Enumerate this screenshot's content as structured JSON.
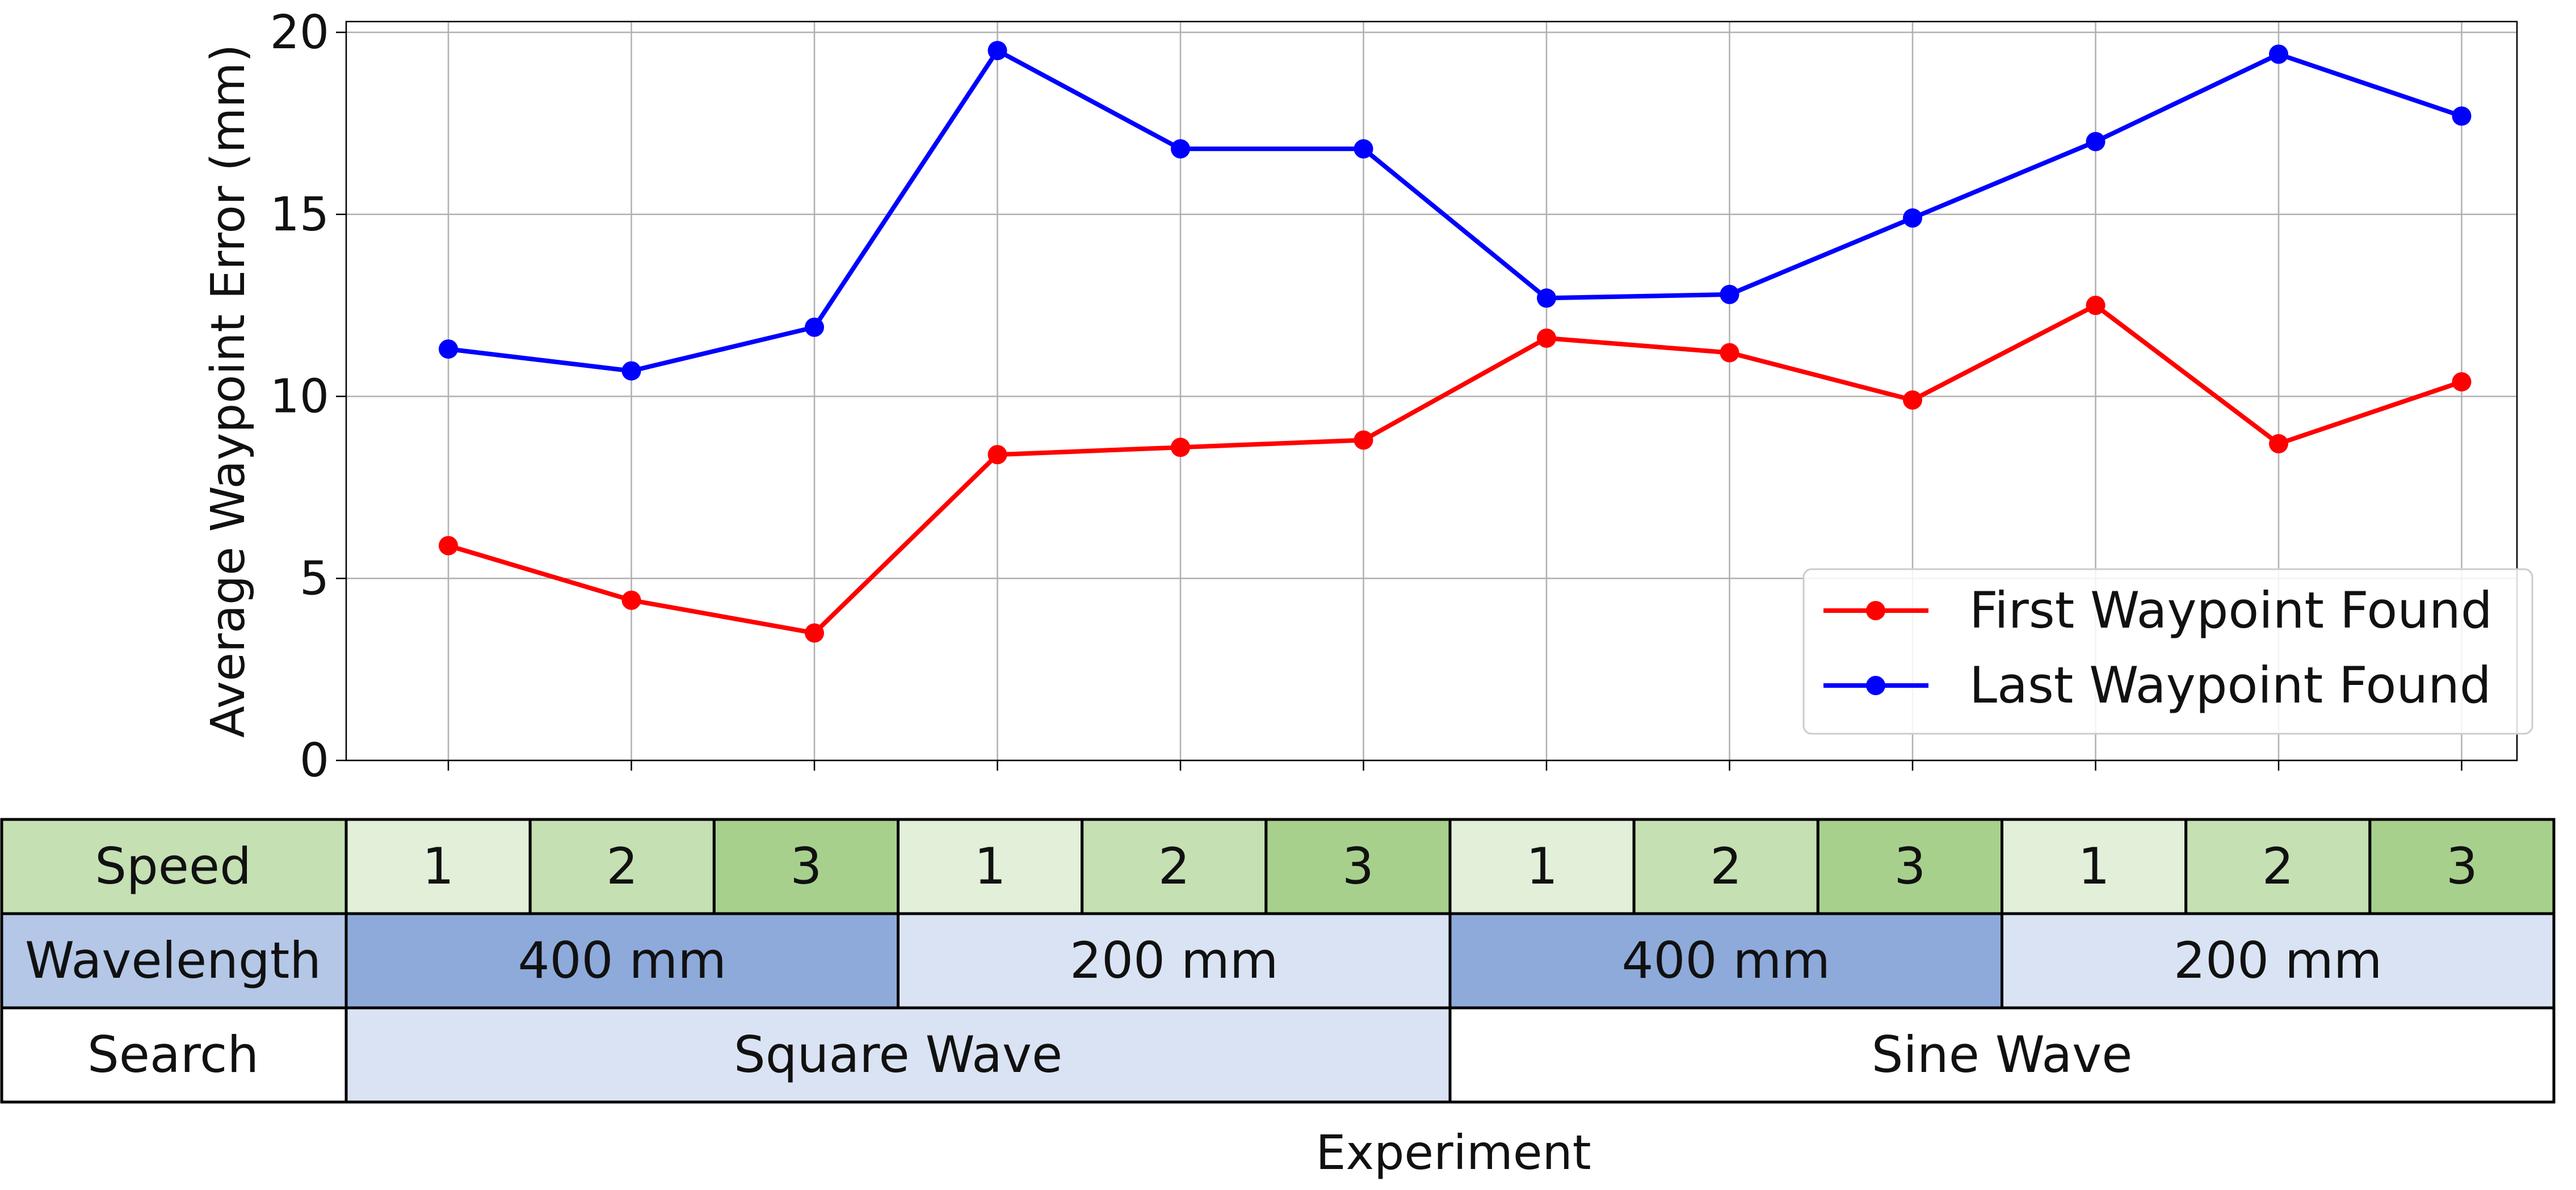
{
  "chart_data": {
    "type": "line",
    "title": "",
    "ylabel": "Average Waypoint Error (mm)",
    "xlabel": "Experiment",
    "ylim": [
      0,
      20
    ],
    "yticks": [
      0,
      5,
      10,
      15,
      20
    ],
    "grid": true,
    "legend_position": "lower-right",
    "x": [
      1,
      2,
      3,
      4,
      5,
      6,
      7,
      8,
      9,
      10,
      11,
      12
    ],
    "series": [
      {
        "name": "First Waypoint Found",
        "color": "#ff0000",
        "values": [
          5.9,
          4.4,
          3.5,
          8.4,
          8.6,
          8.8,
          11.6,
          11.2,
          9.9,
          12.5,
          8.7,
          10.4
        ]
      },
      {
        "name": "Last Waypoint Found",
        "color": "#0000ff",
        "values": [
          11.3,
          10.7,
          11.9,
          19.5,
          16.8,
          16.8,
          12.7,
          12.8,
          14.9,
          17.0,
          19.4,
          17.7
        ]
      }
    ],
    "table": {
      "rows": [
        {
          "label": "Speed",
          "label_color": "#c5e0b3",
          "cells": [
            {
              "text": "1",
              "span": 1,
              "color": "#e2efd9"
            },
            {
              "text": "2",
              "span": 1,
              "color": "#c5e0b3"
            },
            {
              "text": "3",
              "span": 1,
              "color": "#a8d08d"
            },
            {
              "text": "1",
              "span": 1,
              "color": "#e2efd9"
            },
            {
              "text": "2",
              "span": 1,
              "color": "#c5e0b3"
            },
            {
              "text": "3",
              "span": 1,
              "color": "#a8d08d"
            },
            {
              "text": "1",
              "span": 1,
              "color": "#e2efd9"
            },
            {
              "text": "2",
              "span": 1,
              "color": "#c5e0b3"
            },
            {
              "text": "3",
              "span": 1,
              "color": "#a8d08d"
            },
            {
              "text": "1",
              "span": 1,
              "color": "#e2efd9"
            },
            {
              "text": "2",
              "span": 1,
              "color": "#c5e0b3"
            },
            {
              "text": "3",
              "span": 1,
              "color": "#a8d08d"
            }
          ]
        },
        {
          "label": "Wavelength",
          "label_color": "#b4c7e7",
          "cells": [
            {
              "text": "400 mm",
              "span": 3,
              "color": "#8eaadb"
            },
            {
              "text": "200 mm",
              "span": 3,
              "color": "#dae3f3"
            },
            {
              "text": "400 mm",
              "span": 3,
              "color": "#8eaadb"
            },
            {
              "text": "200 mm",
              "span": 3,
              "color": "#dae3f3"
            }
          ]
        },
        {
          "label": "Search",
          "label_color": "#ffffff",
          "cells": [
            {
              "text": "Square Wave",
              "span": 6,
              "color": "#dae3f3"
            },
            {
              "text": "Sine Wave",
              "span": 6,
              "color": "#ffffff"
            }
          ]
        }
      ]
    }
  }
}
